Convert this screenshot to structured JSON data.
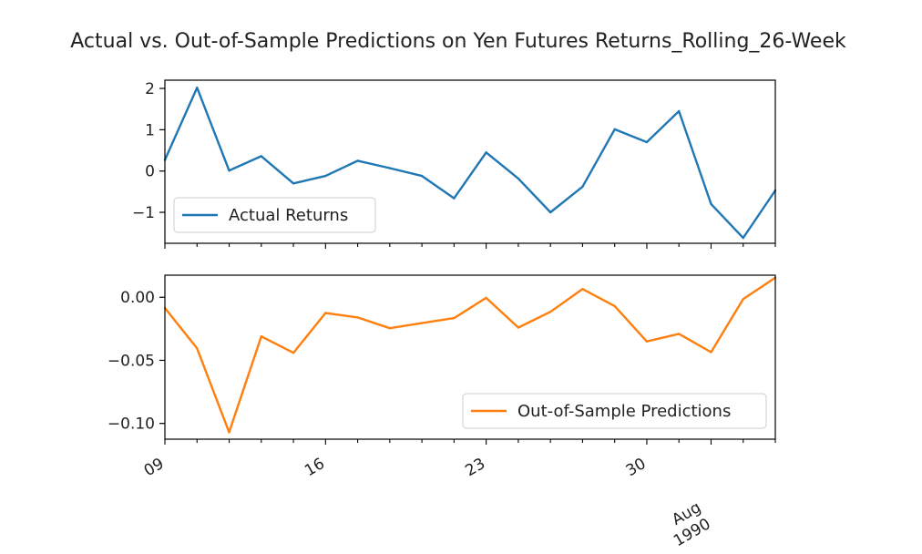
{
  "chart_data": {
    "type": "line",
    "title": "Actual vs. Out-of-Sample Predictions on Yen Futures Returns_Rolling_26-Week",
    "x": [
      "1990-07-09",
      "1990-07-10",
      "1990-07-11",
      "1990-07-12",
      "1990-07-13",
      "1990-07-16",
      "1990-07-17",
      "1990-07-18",
      "1990-07-19",
      "1990-07-20",
      "1990-07-23",
      "1990-07-24",
      "1990-07-25",
      "1990-07-26",
      "1990-07-27",
      "1990-07-30",
      "1990-07-31",
      "1990-08-01",
      "1990-08-02",
      "1990-08-03"
    ],
    "x_tick_labels": [
      "09",
      "16",
      "23",
      "30"
    ],
    "x_tick_index": [
      0,
      5,
      10,
      15
    ],
    "x_minor_label": [
      "Aug",
      "1990"
    ],
    "x_minor_index": 17,
    "subplots": [
      {
        "ylim": [
          -1.75,
          2.2
        ],
        "yticks": [
          2,
          1,
          0,
          -1
        ],
        "ytick_labels": [
          "2",
          "1",
          "0",
          "−1"
        ],
        "legend_position": "lower left",
        "series": [
          {
            "name": "Actual Returns",
            "color": "#1f77b4",
            "values": [
              0.27,
              2.02,
              0.01,
              0.36,
              -0.3,
              -0.12,
              0.25,
              0.07,
              -0.12,
              -0.66,
              0.45,
              -0.18,
              -1.0,
              -0.38,
              1.01,
              0.7,
              1.45,
              -0.8,
              -1.62,
              -0.47
            ]
          }
        ]
      },
      {
        "ylim": [
          -0.1125,
          0.0175
        ],
        "yticks": [
          0.0,
          -0.05,
          -0.1
        ],
        "ytick_labels": [
          "0.00",
          "−0.05",
          "−0.10"
        ],
        "legend_position": "lower right",
        "series": [
          {
            "name": "Out-of-Sample Predictions",
            "color": "#ff7f0e",
            "values": [
              -0.0085,
              -0.0405,
              -0.107,
              -0.031,
              -0.044,
              -0.0125,
              -0.016,
              -0.0245,
              -0.0205,
              -0.0165,
              -0.0005,
              -0.024,
              -0.0115,
              0.0065,
              -0.007,
              -0.035,
              -0.029,
              -0.0435,
              -0.0015,
              0.0155
            ]
          }
        ]
      }
    ]
  }
}
